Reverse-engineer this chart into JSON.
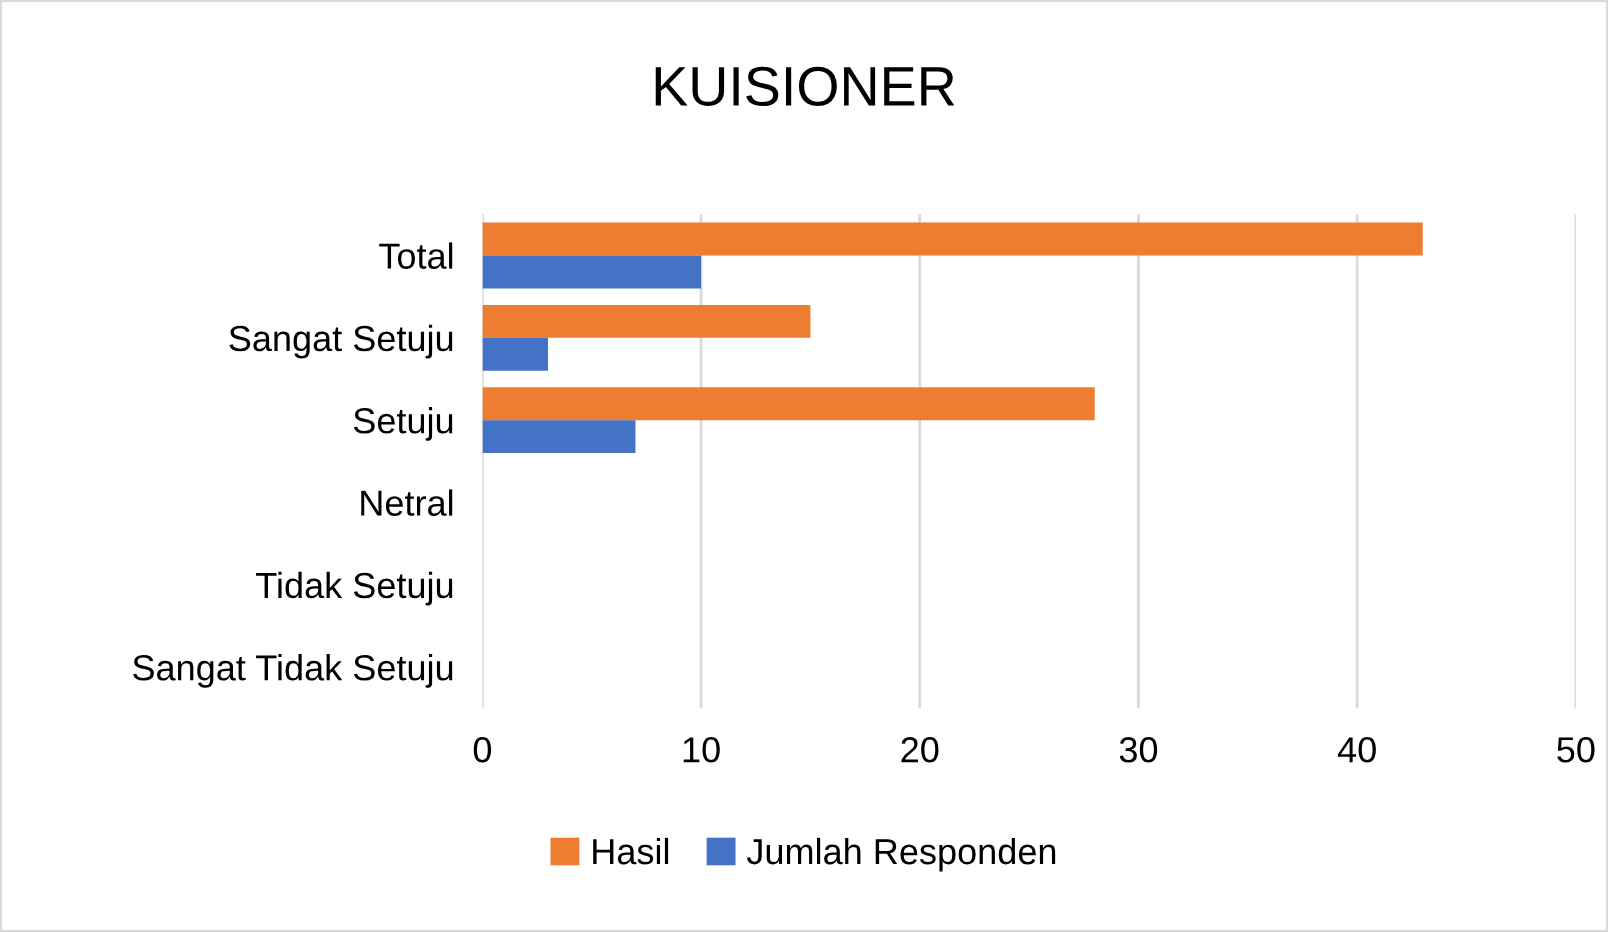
{
  "chart_data": {
    "type": "bar",
    "orientation": "horizontal",
    "title": "KUISIONER",
    "categories": [
      "Total",
      "Sangat Setuju",
      "Setuju",
      "Netral",
      "Tidak Setuju",
      "Sangat Tidak Setuju"
    ],
    "series": [
      {
        "name": "Hasil",
        "color": "#ed7d31",
        "values": [
          43,
          15,
          28,
          0,
          0,
          0
        ]
      },
      {
        "name": "Jumlah Responden",
        "color": "#4472c4",
        "values": [
          10,
          3,
          7,
          0,
          0,
          0
        ]
      }
    ],
    "xlim": [
      0,
      50
    ],
    "xticks": [
      0,
      10,
      20,
      30,
      40,
      50
    ],
    "grid": "x",
    "legend": "bottom"
  }
}
